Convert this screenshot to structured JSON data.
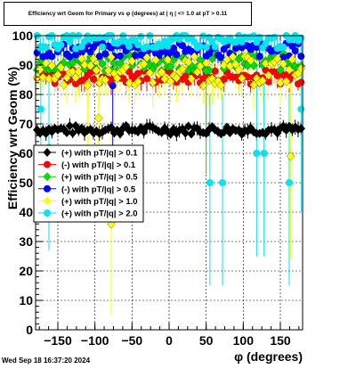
{
  "title": "Efficiency wrt Geom for Primary vs φ (degrees) at |  η | <= 1.0 at pT > 0.11",
  "timestamp": "Wed Sep 18 16:37:20 2024",
  "chart_data": {
    "type": "scatter",
    "title": "Efficiency wrt Geom for Primary vs φ (degrees) at |  η | <= 1.0 at pT > 0.11",
    "xlabel": "φ (degrees)",
    "ylabel": "Efficiency wrt Geom (%)",
    "xlim": [
      -180,
      180
    ],
    "ylim": [
      0,
      100
    ],
    "xticks": [
      -150,
      -100,
      -50,
      0,
      50,
      100,
      150
    ],
    "yticks": [
      0,
      10,
      20,
      30,
      40,
      50,
      60,
      70,
      80,
      90,
      100
    ],
    "grid": true,
    "legend_position": "middle-left",
    "series": [
      {
        "name": "(+) with pT/|q| > 0.1",
        "color": "#000000",
        "marker": "diamond",
        "baseline": 68,
        "amplitude": 1.5
      },
      {
        "name": "(-) with pT/|q| > 0.1",
        "color": "#ff0000",
        "marker": "circle",
        "baseline": 86,
        "amplitude": 2.5
      },
      {
        "name": "(+) with pT/|q| > 0.5",
        "color": "#00dd00",
        "marker": "diamond",
        "baseline": 91,
        "amplitude": 3
      },
      {
        "name": "(-) with pT/|q| > 0.5",
        "color": "#0000ff",
        "marker": "circle",
        "baseline": 95,
        "amplitude": 2.5
      },
      {
        "name": "(+) with pT/|q| > 1.0",
        "color": "#ffff00",
        "marker": "diamond",
        "baseline": 88,
        "amplitude": 5
      },
      {
        "name": "(+) with pT/|q| > 2.0",
        "color": "#00e5ee",
        "marker": "circle",
        "baseline": 98,
        "amplitude": 2.5
      }
    ],
    "outliers": [
      {
        "series": 5,
        "x": -173,
        "y": 75
      },
      {
        "series": 5,
        "x": -162,
        "y": 62
      },
      {
        "series": 5,
        "x": 55,
        "y": 50
      },
      {
        "series": 5,
        "x": 72,
        "y": 50
      },
      {
        "series": 5,
        "x": 118,
        "y": 60
      },
      {
        "series": 5,
        "x": 128,
        "y": 60
      },
      {
        "series": 5,
        "x": 162,
        "y": 50
      },
      {
        "series": 5,
        "x": 178,
        "y": 75
      },
      {
        "series": 4,
        "x": -78,
        "y": 36
      },
      {
        "series": 4,
        "x": -95,
        "y": 72
      },
      {
        "series": 4,
        "x": 164,
        "y": 59
      },
      {
        "series": 3,
        "x": -76,
        "y": 83
      },
      {
        "series": 4,
        "x": -110,
        "y": 83
      },
      {
        "series": 2,
        "x": 50,
        "y": 88
      }
    ]
  }
}
